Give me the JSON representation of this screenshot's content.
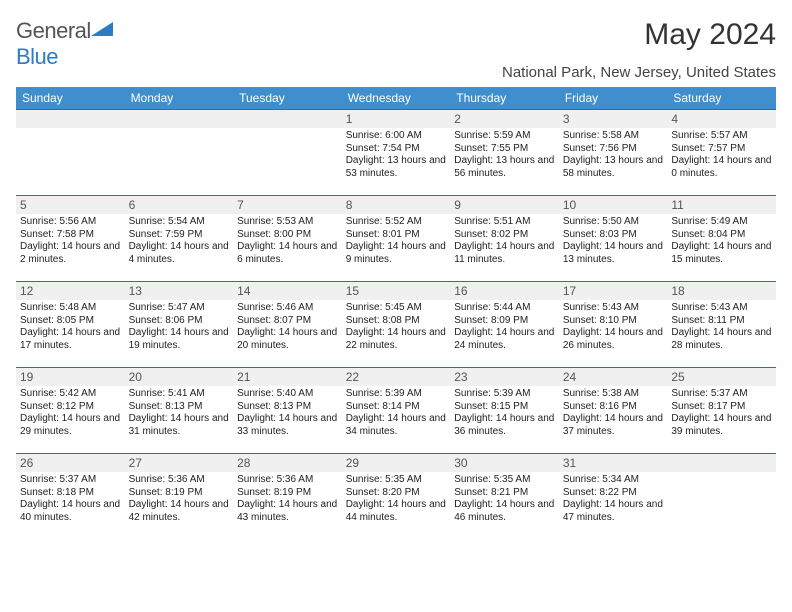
{
  "logo": {
    "word1": "General",
    "word2": "Blue",
    "color_blue": "#2b7cc4",
    "color_gray": "#555"
  },
  "header": {
    "month_title": "May 2024",
    "location": "National Park, New Jersey, United States"
  },
  "calendar": {
    "header_bg": "#3f8fcf",
    "daynum_bg": "#f0f0f0",
    "border_color": "#3f6b92",
    "weekdays": [
      "Sunday",
      "Monday",
      "Tuesday",
      "Wednesday",
      "Thursday",
      "Friday",
      "Saturday"
    ],
    "weeks": [
      [
        {
          "blank": true
        },
        {
          "blank": true
        },
        {
          "blank": true
        },
        {
          "num": "1",
          "sunrise": "Sunrise: 6:00 AM",
          "sunset": "Sunset: 7:54 PM",
          "daylight": "Daylight: 13 hours and 53 minutes."
        },
        {
          "num": "2",
          "sunrise": "Sunrise: 5:59 AM",
          "sunset": "Sunset: 7:55 PM",
          "daylight": "Daylight: 13 hours and 56 minutes."
        },
        {
          "num": "3",
          "sunrise": "Sunrise: 5:58 AM",
          "sunset": "Sunset: 7:56 PM",
          "daylight": "Daylight: 13 hours and 58 minutes."
        },
        {
          "num": "4",
          "sunrise": "Sunrise: 5:57 AM",
          "sunset": "Sunset: 7:57 PM",
          "daylight": "Daylight: 14 hours and 0 minutes."
        }
      ],
      [
        {
          "num": "5",
          "sunrise": "Sunrise: 5:56 AM",
          "sunset": "Sunset: 7:58 PM",
          "daylight": "Daylight: 14 hours and 2 minutes."
        },
        {
          "num": "6",
          "sunrise": "Sunrise: 5:54 AM",
          "sunset": "Sunset: 7:59 PM",
          "daylight": "Daylight: 14 hours and 4 minutes."
        },
        {
          "num": "7",
          "sunrise": "Sunrise: 5:53 AM",
          "sunset": "Sunset: 8:00 PM",
          "daylight": "Daylight: 14 hours and 6 minutes."
        },
        {
          "num": "8",
          "sunrise": "Sunrise: 5:52 AM",
          "sunset": "Sunset: 8:01 PM",
          "daylight": "Daylight: 14 hours and 9 minutes."
        },
        {
          "num": "9",
          "sunrise": "Sunrise: 5:51 AM",
          "sunset": "Sunset: 8:02 PM",
          "daylight": "Daylight: 14 hours and 11 minutes."
        },
        {
          "num": "10",
          "sunrise": "Sunrise: 5:50 AM",
          "sunset": "Sunset: 8:03 PM",
          "daylight": "Daylight: 14 hours and 13 minutes."
        },
        {
          "num": "11",
          "sunrise": "Sunrise: 5:49 AM",
          "sunset": "Sunset: 8:04 PM",
          "daylight": "Daylight: 14 hours and 15 minutes."
        }
      ],
      [
        {
          "num": "12",
          "sunrise": "Sunrise: 5:48 AM",
          "sunset": "Sunset: 8:05 PM",
          "daylight": "Daylight: 14 hours and 17 minutes."
        },
        {
          "num": "13",
          "sunrise": "Sunrise: 5:47 AM",
          "sunset": "Sunset: 8:06 PM",
          "daylight": "Daylight: 14 hours and 19 minutes."
        },
        {
          "num": "14",
          "sunrise": "Sunrise: 5:46 AM",
          "sunset": "Sunset: 8:07 PM",
          "daylight": "Daylight: 14 hours and 20 minutes."
        },
        {
          "num": "15",
          "sunrise": "Sunrise: 5:45 AM",
          "sunset": "Sunset: 8:08 PM",
          "daylight": "Daylight: 14 hours and 22 minutes."
        },
        {
          "num": "16",
          "sunrise": "Sunrise: 5:44 AM",
          "sunset": "Sunset: 8:09 PM",
          "daylight": "Daylight: 14 hours and 24 minutes."
        },
        {
          "num": "17",
          "sunrise": "Sunrise: 5:43 AM",
          "sunset": "Sunset: 8:10 PM",
          "daylight": "Daylight: 14 hours and 26 minutes."
        },
        {
          "num": "18",
          "sunrise": "Sunrise: 5:43 AM",
          "sunset": "Sunset: 8:11 PM",
          "daylight": "Daylight: 14 hours and 28 minutes."
        }
      ],
      [
        {
          "num": "19",
          "sunrise": "Sunrise: 5:42 AM",
          "sunset": "Sunset: 8:12 PM",
          "daylight": "Daylight: 14 hours and 29 minutes."
        },
        {
          "num": "20",
          "sunrise": "Sunrise: 5:41 AM",
          "sunset": "Sunset: 8:13 PM",
          "daylight": "Daylight: 14 hours and 31 minutes."
        },
        {
          "num": "21",
          "sunrise": "Sunrise: 5:40 AM",
          "sunset": "Sunset: 8:13 PM",
          "daylight": "Daylight: 14 hours and 33 minutes."
        },
        {
          "num": "22",
          "sunrise": "Sunrise: 5:39 AM",
          "sunset": "Sunset: 8:14 PM",
          "daylight": "Daylight: 14 hours and 34 minutes."
        },
        {
          "num": "23",
          "sunrise": "Sunrise: 5:39 AM",
          "sunset": "Sunset: 8:15 PM",
          "daylight": "Daylight: 14 hours and 36 minutes."
        },
        {
          "num": "24",
          "sunrise": "Sunrise: 5:38 AM",
          "sunset": "Sunset: 8:16 PM",
          "daylight": "Daylight: 14 hours and 37 minutes."
        },
        {
          "num": "25",
          "sunrise": "Sunrise: 5:37 AM",
          "sunset": "Sunset: 8:17 PM",
          "daylight": "Daylight: 14 hours and 39 minutes."
        }
      ],
      [
        {
          "num": "26",
          "sunrise": "Sunrise: 5:37 AM",
          "sunset": "Sunset: 8:18 PM",
          "daylight": "Daylight: 14 hours and 40 minutes."
        },
        {
          "num": "27",
          "sunrise": "Sunrise: 5:36 AM",
          "sunset": "Sunset: 8:19 PM",
          "daylight": "Daylight: 14 hours and 42 minutes."
        },
        {
          "num": "28",
          "sunrise": "Sunrise: 5:36 AM",
          "sunset": "Sunset: 8:19 PM",
          "daylight": "Daylight: 14 hours and 43 minutes."
        },
        {
          "num": "29",
          "sunrise": "Sunrise: 5:35 AM",
          "sunset": "Sunset: 8:20 PM",
          "daylight": "Daylight: 14 hours and 44 minutes."
        },
        {
          "num": "30",
          "sunrise": "Sunrise: 5:35 AM",
          "sunset": "Sunset: 8:21 PM",
          "daylight": "Daylight: 14 hours and 46 minutes."
        },
        {
          "num": "31",
          "sunrise": "Sunrise: 5:34 AM",
          "sunset": "Sunset: 8:22 PM",
          "daylight": "Daylight: 14 hours and 47 minutes."
        },
        {
          "blank": true
        }
      ]
    ]
  }
}
